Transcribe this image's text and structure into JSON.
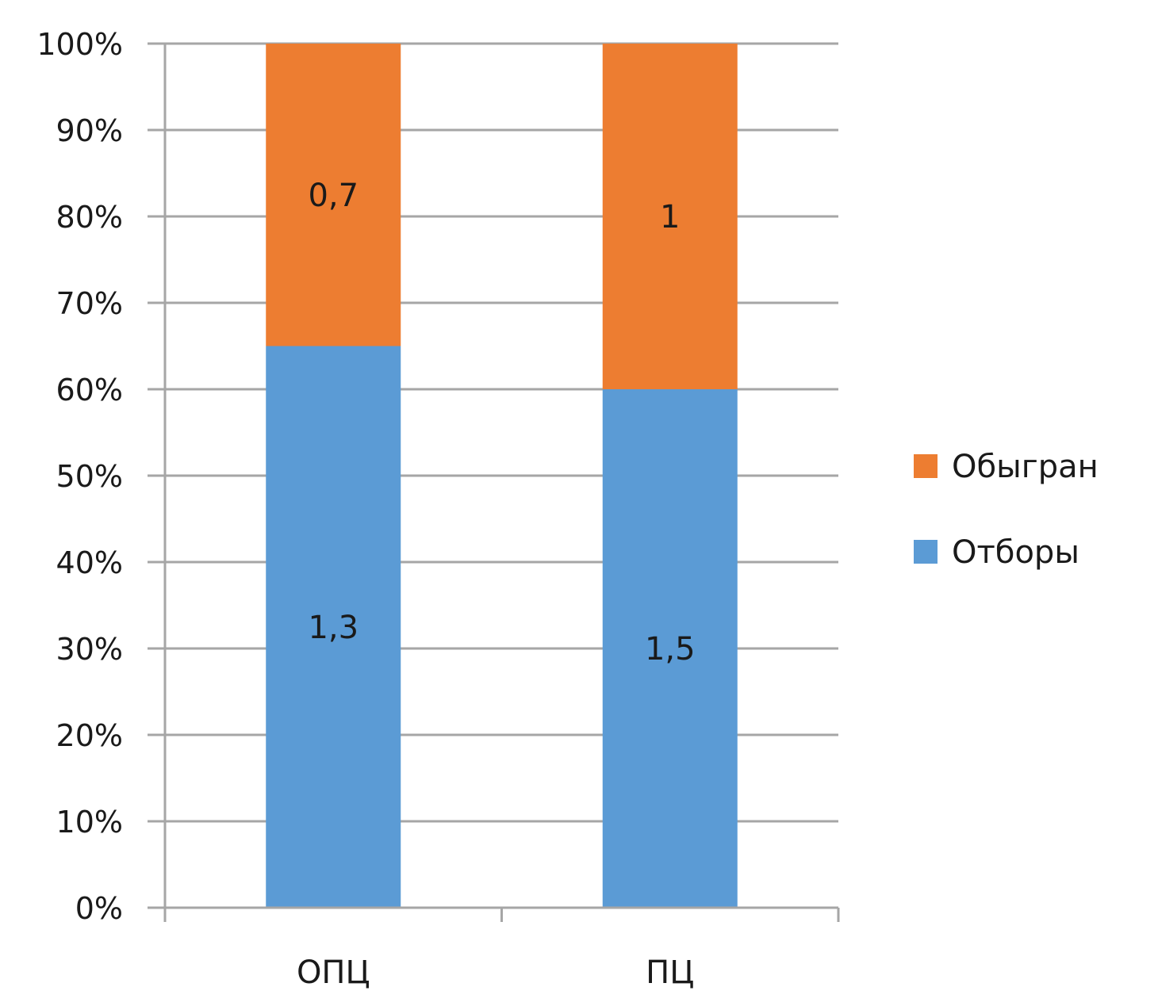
{
  "chart_data": {
    "type": "bar",
    "stacked": true,
    "percent_stacked": true,
    "categories": [
      "ОПЦ",
      "ПЦ"
    ],
    "series": [
      {
        "name": "Отборы",
        "values": [
          1.3,
          1.5
        ],
        "labels": [
          "1,3",
          "1,5"
        ],
        "color": "#5b9bd5"
      },
      {
        "name": "Обыгран",
        "values": [
          0.7,
          1.0
        ],
        "labels": [
          "0,7",
          "1"
        ],
        "color": "#ed7d31"
      }
    ],
    "ylim": [
      0,
      100
    ],
    "yticks": [
      "0%",
      "10%",
      "20%",
      "30%",
      "40%",
      "50%",
      "60%",
      "70%",
      "80%",
      "90%",
      "100%"
    ],
    "grid": true,
    "legend_position": "right",
    "legend_order": [
      "Обыгран",
      "Отборы"
    ],
    "title": "",
    "xlabel": "",
    "ylabel": ""
  }
}
